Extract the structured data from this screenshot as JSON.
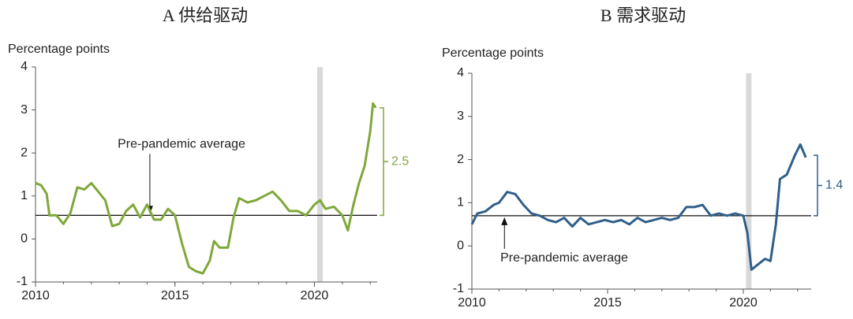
{
  "chart_data": [
    {
      "type": "line",
      "title": "A 供给驱动",
      "y_label": "Percentage points",
      "x": [
        2010.0,
        2010.2,
        2010.4,
        2010.5,
        2010.75,
        2011.0,
        2011.25,
        2011.5,
        2011.75,
        2012.0,
        2012.25,
        2012.5,
        2012.75,
        2013.0,
        2013.25,
        2013.5,
        2013.75,
        2014.0,
        2014.25,
        2014.5,
        2014.75,
        2015.0,
        2015.25,
        2015.5,
        2015.75,
        2016.0,
        2016.25,
        2016.4,
        2016.6,
        2016.9,
        2017.1,
        2017.3,
        2017.6,
        2017.9,
        2018.2,
        2018.5,
        2018.8,
        2019.1,
        2019.4,
        2019.7,
        2020.0,
        2020.2,
        2020.4,
        2020.7,
        2021.0,
        2021.2,
        2021.4,
        2021.6,
        2021.8,
        2022.0,
        2022.1,
        2022.2
      ],
      "values": [
        1.3,
        1.25,
        1.05,
        0.55,
        0.55,
        0.35,
        0.6,
        1.2,
        1.15,
        1.3,
        1.1,
        0.9,
        0.3,
        0.35,
        0.65,
        0.8,
        0.5,
        0.8,
        0.45,
        0.45,
        0.7,
        0.55,
        -0.1,
        -0.65,
        -0.75,
        -0.8,
        -0.5,
        -0.05,
        -0.2,
        -0.2,
        0.5,
        0.95,
        0.85,
        0.9,
        1.0,
        1.1,
        0.9,
        0.65,
        0.65,
        0.55,
        0.8,
        0.9,
        0.7,
        0.75,
        0.55,
        0.2,
        0.8,
        1.3,
        1.7,
        2.5,
        3.15,
        3.05
      ],
      "color": "#7fa83a",
      "xlim": [
        2010,
        2022.25
      ],
      "ylim": [
        -1,
        4
      ],
      "xticks": [
        2010,
        2015,
        2020
      ],
      "yticks": [
        -1,
        0,
        1,
        2,
        3,
        4
      ],
      "shaded_x": [
        2020.1,
        2020.3
      ],
      "reference_line": {
        "value": 0.55,
        "label": "Pre-pandemic average"
      },
      "annotation_value": 2.5
    },
    {
      "type": "line",
      "title": "B 需求驱动",
      "y_label": "Percentage points",
      "x": [
        2010.0,
        2010.2,
        2010.5,
        2010.8,
        2011.0,
        2011.3,
        2011.6,
        2011.9,
        2012.2,
        2012.5,
        2012.8,
        2013.1,
        2013.4,
        2013.7,
        2014.0,
        2014.3,
        2014.6,
        2014.9,
        2015.2,
        2015.5,
        2015.8,
        2016.1,
        2016.4,
        2016.7,
        2017.0,
        2017.3,
        2017.6,
        2017.9,
        2018.2,
        2018.5,
        2018.8,
        2019.1,
        2019.4,
        2019.7,
        2020.0,
        2020.15,
        2020.3,
        2020.5,
        2020.8,
        2021.0,
        2021.2,
        2021.35,
        2021.6,
        2021.9,
        2022.1,
        2022.3
      ],
      "values": [
        0.5,
        0.75,
        0.8,
        0.95,
        1.0,
        1.25,
        1.2,
        0.95,
        0.75,
        0.7,
        0.6,
        0.55,
        0.65,
        0.45,
        0.65,
        0.5,
        0.55,
        0.6,
        0.55,
        0.6,
        0.5,
        0.65,
        0.55,
        0.6,
        0.65,
        0.6,
        0.65,
        0.9,
        0.9,
        0.95,
        0.7,
        0.75,
        0.7,
        0.75,
        0.7,
        0.3,
        -0.55,
        -0.45,
        -0.3,
        -0.35,
        0.5,
        1.55,
        1.65,
        2.1,
        2.35,
        2.05
      ],
      "color": "#2f5f8a",
      "xlim": [
        2010,
        2022.5
      ],
      "ylim": [
        -1,
        4
      ],
      "xticks": [
        2010,
        2015,
        2020
      ],
      "yticks": [
        -1,
        0,
        1,
        2,
        3,
        4
      ],
      "shaded_x": [
        2020.1,
        2020.3
      ],
      "reference_line": {
        "value": 0.7,
        "label": "Pre-pandemic average"
      },
      "annotation_value": 1.4
    }
  ]
}
